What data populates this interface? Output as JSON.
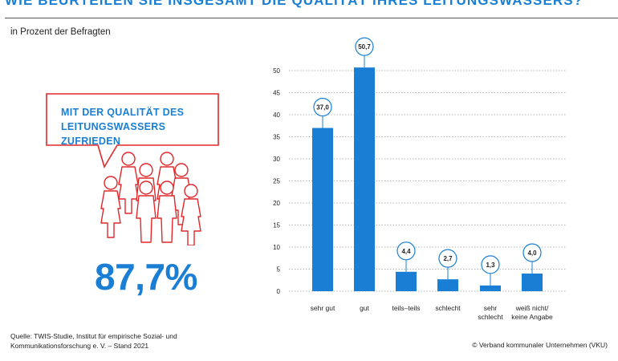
{
  "header": {
    "title": "WIE BEURTEILEN SIE INSGESAMT DIE QUALITÄT IHRES LEITUNGSWASSERS?",
    "subtitle": "in Prozent der Befragten"
  },
  "callout": {
    "line1": "MIT DER QUALITÄT DES",
    "line2": "LEITUNGSWASSERS ZUFRIEDEN",
    "value": "87,7%"
  },
  "footer": {
    "source_line1": "Quelle: TWIS-Studie, Institut für empirische Sozial- und",
    "source_line2": "Kommunikationsforschung e. V. – Stand 2021",
    "copyright": "© Verband kommunaler Unternehmen (VKU)"
  },
  "colors": {
    "accent": "#1a7fd4",
    "bar": "#1a7fd4",
    "figure_outline": "#e0282a"
  },
  "icons": [
    "speech-bubble-icon",
    "person-group-icon"
  ],
  "chart_data": {
    "type": "bar",
    "categories": [
      [
        "sehr gut"
      ],
      [
        "gut"
      ],
      [
        "teils–teils"
      ],
      [
        "schlecht"
      ],
      [
        "sehr",
        "schlecht"
      ],
      [
        "weiß nicht/",
        "keine Angabe"
      ]
    ],
    "values": [
      37.0,
      50.7,
      4.4,
      2.7,
      1.3,
      4.0
    ],
    "value_labels": [
      "37,0",
      "50,7",
      "4,4",
      "2,7",
      "1,3",
      "4,0"
    ],
    "yticks": [
      "0",
      "5",
      "10",
      "15",
      "20",
      "25",
      "30",
      "35",
      "40",
      "45",
      "50"
    ],
    "ylim": [
      0,
      50
    ],
    "grid": true,
    "title": "",
    "xlabel": "",
    "ylabel": ""
  }
}
